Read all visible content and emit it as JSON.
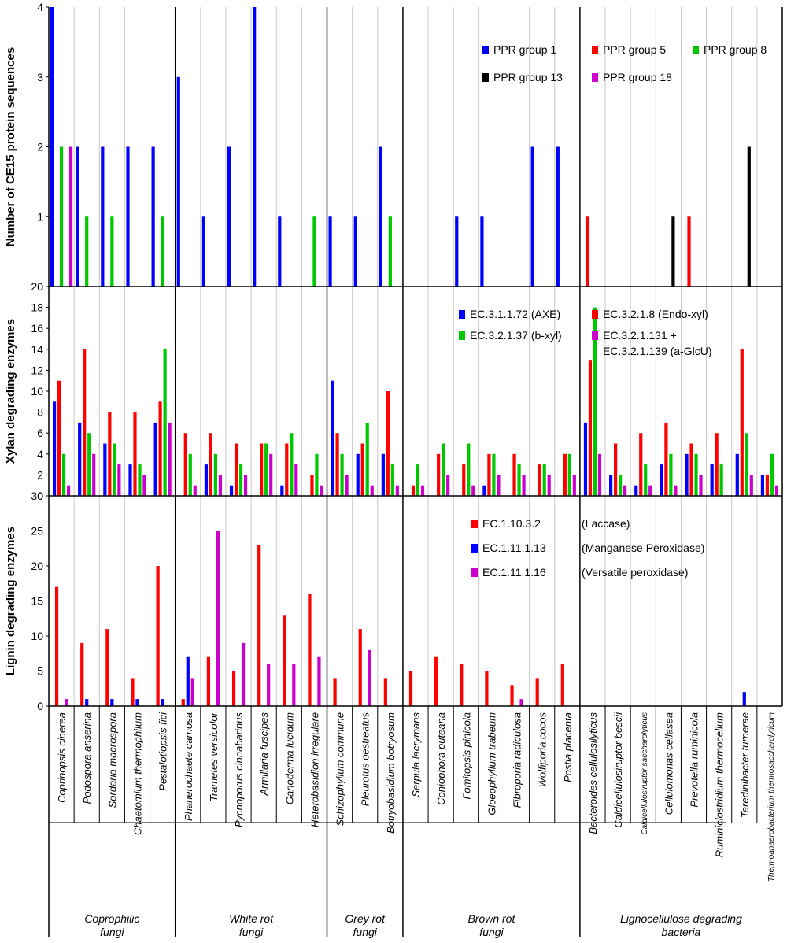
{
  "chart_data": [
    {
      "type": "bar",
      "ylabel": "Number of CE15 protein sequences",
      "ylim": [
        0,
        4
      ],
      "yticks": [
        0,
        1,
        2,
        3,
        4
      ],
      "legend_columns": 3,
      "legend_placement": "top-right",
      "series": [
        {
          "name": "PPR group 1",
          "color": "#0000ff",
          "values": [
            4,
            2,
            2,
            2,
            2,
            3,
            1,
            2,
            4,
            1,
            0,
            1,
            1,
            2,
            0,
            0,
            1,
            1,
            0,
            2,
            2,
            0,
            0,
            0,
            0,
            0,
            0,
            0,
            0
          ]
        },
        {
          "name": "PPR group 5",
          "color": "#ff0000",
          "values": [
            0,
            0,
            0,
            0,
            0,
            0,
            0,
            0,
            0,
            0,
            0,
            0,
            0,
            0,
            0,
            0,
            0,
            0,
            0,
            0,
            0,
            1,
            0,
            0,
            0,
            1,
            0,
            0,
            0
          ]
        },
        {
          "name": "PPR group 8",
          "color": "#00c800",
          "values": [
            2,
            1,
            1,
            0,
            1,
            0,
            0,
            0,
            0,
            0,
            1,
            0,
            0,
            1,
            0,
            0,
            0,
            0,
            0,
            0,
            0,
            0,
            0,
            0,
            0,
            0,
            0,
            0,
            0
          ]
        },
        {
          "name": "PPR group 13",
          "color": "#000000",
          "values": [
            0,
            0,
            0,
            0,
            0,
            0,
            0,
            0,
            0,
            0,
            0,
            0,
            0,
            0,
            0,
            0,
            0,
            0,
            0,
            0,
            0,
            0,
            0,
            0,
            1,
            0,
            0,
            2,
            0
          ]
        },
        {
          "name": "PPR group 18",
          "color": "#cc00cc",
          "values": [
            2,
            0,
            0,
            0,
            0,
            0,
            0,
            0,
            0,
            0,
            0,
            0,
            0,
            0,
            0,
            0,
            0,
            0,
            0,
            0,
            0,
            0,
            0,
            0,
            0,
            0,
            0,
            0,
            0
          ]
        }
      ]
    },
    {
      "type": "bar",
      "ylabel": "Xylan degrading enzymes",
      "ylim": [
        0,
        20
      ],
      "yticks": [
        0,
        2,
        4,
        6,
        8,
        10,
        12,
        14,
        16,
        18,
        20
      ],
      "legend_columns": 2,
      "legend_placement": "top-right",
      "legend_order": [
        0,
        1,
        2,
        3
      ],
      "series": [
        {
          "name": "EC.3.1.1.72 (AXE)",
          "color": "#0000ff",
          "values": [
            9,
            7,
            5,
            3,
            7,
            0,
            3,
            1,
            0,
            1,
            0,
            11,
            4,
            4,
            0,
            0,
            0,
            1,
            0,
            0,
            0,
            7,
            2,
            1,
            3,
            4,
            3,
            4,
            2
          ]
        },
        {
          "name": "EC.3.2.1.8 (Endo-xyl)",
          "color": "#ff0000",
          "values": [
            11,
            14,
            8,
            8,
            9,
            6,
            6,
            5,
            5,
            5,
            2,
            6,
            5,
            10,
            1,
            4,
            3,
            4,
            4,
            3,
            4,
            13,
            5,
            6,
            7,
            5,
            6,
            14,
            2
          ]
        },
        {
          "name": "EC.3.2.1.37 (b-xyl)",
          "color": "#00c800",
          "values": [
            4,
            6,
            5,
            3,
            14,
            4,
            4,
            3,
            5,
            6,
            4,
            4,
            7,
            3,
            3,
            5,
            5,
            4,
            3,
            3,
            4,
            18,
            2,
            3,
            4,
            4,
            3,
            6,
            4
          ]
        },
        {
          "name": "EC.3.2.1.131 +",
          "name_line2": "EC.3.2.1.139 (a-GlcU)",
          "color": "#cc00cc",
          "values": [
            1,
            4,
            3,
            2,
            7,
            1,
            2,
            2,
            4,
            3,
            1,
            2,
            1,
            1,
            1,
            2,
            1,
            2,
            2,
            2,
            2,
            4,
            1,
            1,
            1,
            2,
            0,
            2,
            1
          ]
        }
      ]
    },
    {
      "type": "bar",
      "ylabel": "Lignin degrading enzymes",
      "ylim": [
        0,
        30
      ],
      "yticks": [
        0,
        5,
        10,
        15,
        20,
        25,
        30
      ],
      "legend_columns": 1,
      "legend_placement": "top-right",
      "series": [
        {
          "name": "EC.1.10.3.2",
          "name_extra": "(Laccase)",
          "color": "#ff0000",
          "values": [
            17,
            9,
            11,
            4,
            20,
            1,
            7,
            5,
            23,
            13,
            16,
            4,
            11,
            4,
            5,
            7,
            6,
            5,
            3,
            4,
            6,
            0,
            0,
            0,
            0,
            0,
            0,
            0,
            0
          ]
        },
        {
          "name": "EC.1.11.1.13",
          "name_extra": "(Manganese Peroxidase)",
          "color": "#0000ff",
          "values": [
            0,
            1,
            1,
            1,
            1,
            7,
            0,
            0,
            0,
            0,
            0,
            0,
            0,
            0,
            0,
            0,
            0,
            0,
            0,
            0,
            0,
            0,
            0,
            0,
            0,
            0,
            0,
            2,
            0
          ]
        },
        {
          "name": "EC.1.11.1.16",
          "name_extra": "(Versatile peroxidase)",
          "color": "#cc00cc",
          "values": [
            1,
            0,
            0,
            0,
            0,
            4,
            25,
            9,
            6,
            6,
            7,
            0,
            8,
            0,
            0,
            0,
            0,
            0,
            1,
            0,
            0,
            0,
            0,
            0,
            0,
            0,
            0,
            0,
            0
          ]
        }
      ]
    }
  ],
  "species": [
    "Coprinopsis cinerea",
    "Podospora anserina",
    "Sordaria macrospora",
    "Chaetomium thermophilum",
    "Pestalotiopsis fici",
    "Phanerochaete carnosa",
    "Trametes versicolor",
    "Pycnoporus cinnabarinus",
    "Armillaria fuscipes",
    "Ganoderma lucidum",
    "Heterobasidion irregulare",
    "Schizophyllum commune",
    "Pleurotus oestreatus",
    "Botryobasidium botryosum",
    "Serpula lacrymans",
    "Coniophora puteana",
    "Fomitopsis pinicola",
    "Gloeophyllum trabeum",
    "Fibroporia radiculosa",
    "Wolfiporia cocos",
    "Postia placenta",
    "Bacteroides cellulosilyticus",
    "Caldicellulosiruptor bescii",
    "Caldicellulosiruptor saccharolyticus",
    "Cellulomonas cellasea",
    "Prevotella ruminicola",
    "Ruminiclostridium thermocellum",
    "Teredinibacter turnerae",
    "Thermoanaerobacterium thermosaccharolyticum"
  ],
  "groups": [
    {
      "line1": "Coprophilic",
      "line2": "fungi",
      "count": 5
    },
    {
      "line1": "White rot",
      "line2": "fungi",
      "count": 6
    },
    {
      "line1": "Grey rot",
      "line2": "fungi",
      "count": 3
    },
    {
      "line1": "Brown rot",
      "line2": "fungi",
      "count": 7
    },
    {
      "line1": "Lignocellulose degrading",
      "line2": "bacteria",
      "count": 8
    }
  ]
}
